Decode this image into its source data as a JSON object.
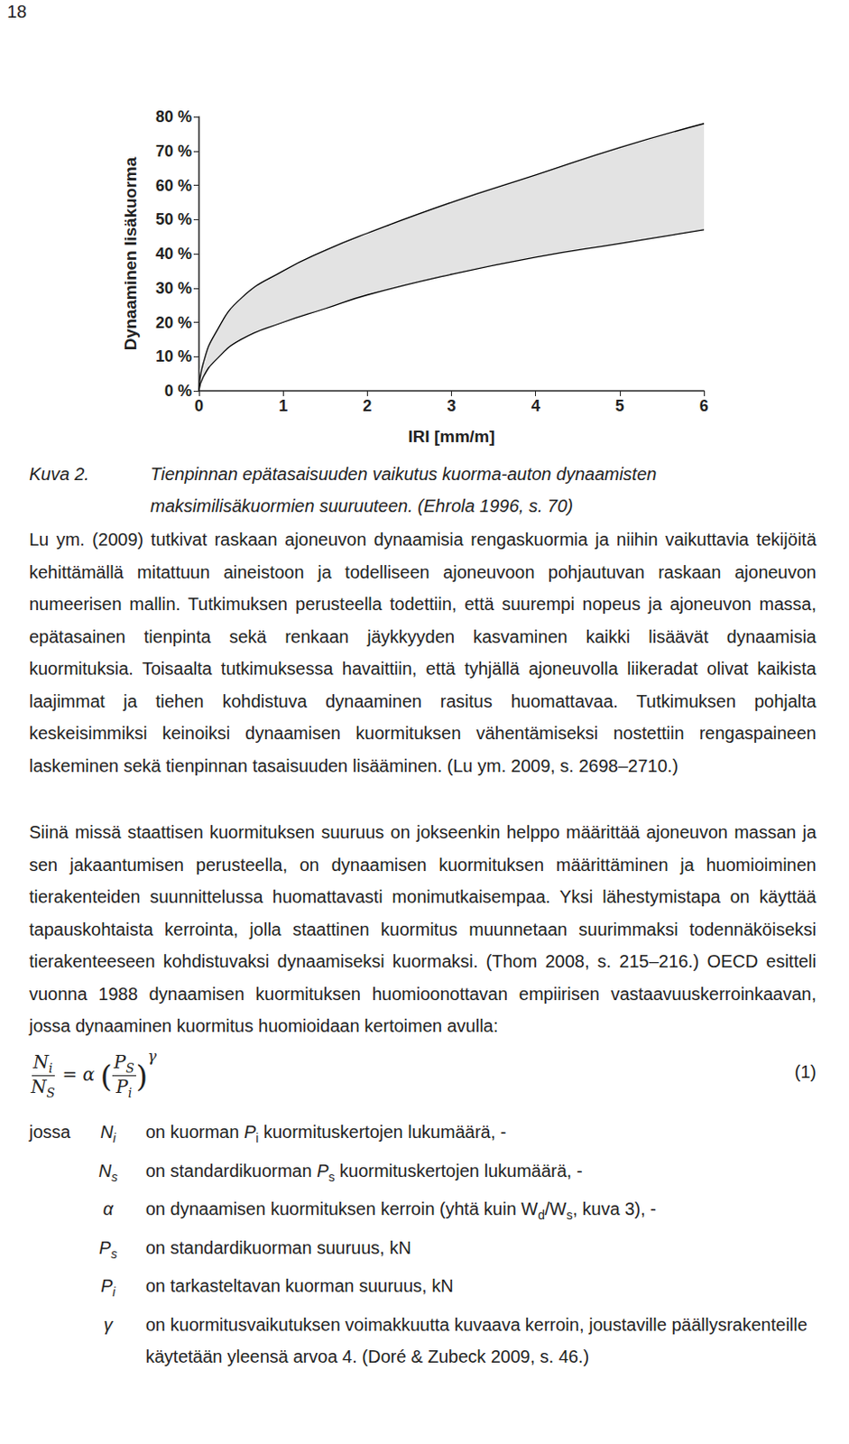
{
  "chart_data": {
    "type": "line",
    "xlabel": "IRI [mm/m]",
    "ylabel": "Dynaaminen lisäkuorma",
    "x": [
      0,
      0.05,
      0.2,
      0.5,
      1,
      1.5,
      2,
      3,
      4,
      5,
      6
    ],
    "series": [
      {
        "color": "#000000",
        "values": [
          0,
          8,
          17,
          27,
          35,
          41,
          46,
          55,
          63,
          71,
          78
        ]
      },
      {
        "color": "#000000",
        "values": [
          0,
          4,
          9,
          15,
          20,
          24,
          28,
          34,
          39,
          43,
          47
        ]
      }
    ],
    "xlim": [
      0,
      6
    ],
    "xticks": [
      0,
      1,
      2,
      3,
      4,
      5,
      6
    ],
    "ylim": [
      0,
      80
    ],
    "yticks": [
      {
        "value": 0,
        "label": "0 %"
      },
      {
        "value": 10,
        "label": "10 %"
      },
      {
        "value": 20,
        "label": "20 %"
      },
      {
        "value": 30,
        "label": "30 %"
      },
      {
        "value": 40,
        "label": "40 %"
      },
      {
        "value": 50,
        "label": "50 %"
      },
      {
        "value": 60,
        "label": "60 %"
      },
      {
        "value": 70,
        "label": "70 %"
      },
      {
        "value": 80,
        "label": "80 %"
      }
    ],
    "grid": false
  },
  "document": {
    "page_number": "18",
    "caption": {
      "label": "Kuva 2.",
      "text": "Tienpinnan epätasaisuuden vaikutus kuorma-auton dynaamisten maksimilisäkuormien suuruuteen. (Ehrola 1996, s. 70)"
    },
    "paragraphs": [
      "Lu ym. (2009) tutkivat raskaan ajoneuvon dynaamisia rengaskuormia ja niihin vaikuttavia tekijöitä kehittämällä mitattuun aineistoon ja todelliseen ajoneuvoon pohjautuvan raskaan ajoneuvon numeerisen mallin. Tutkimuksen perusteella todettiin, että suurempi nopeus ja ajoneuvon massa, epätasainen tienpinta sekä renkaan jäykkyyden kasvaminen kaikki lisäävät dynaamisia kuormituksia. Toisaalta tutkimuksessa havaittiin, että tyhjällä ajoneuvolla liikeradat olivat kaikista laajimmat ja tiehen kohdistuva dynaaminen rasitus huomattavaa. Tutkimuksen pohjalta keskeisimmiksi keinoiksi dynaamisen kuormituksen vähentämiseksi nostettiin rengaspaineen laskeminen sekä tienpinnan tasaisuuden lisääminen. (Lu ym. 2009, s. 2698–2710.)",
      "Siinä missä staattisen kuormituksen suuruus on jokseenkin helppo määrittää ajoneuvon massan ja sen jakaantumisen perusteella, on dynaamisen kuormituksen määrittäminen ja huomioiminen tierakenteiden suunnittelussa huomattavasti monimutkaisempaa. Yksi lähestymistapa on käyttää tapauskohtaista kerrointa, jolla staattinen kuormitus muunnetaan suurimmaksi todennäköiseksi tierakenteeseen kohdistuvaksi dynaamiseksi kuormaksi. (Thom 2008, s. 215–216.) OECD esitteli vuonna 1988 dynaamisen kuormituksen huomioonottavan empiirisen vastaavuuskerroinkaavan, jossa dynaaminen kuormitus huomioidaan kertoimen avulla:"
    ],
    "formula": {
      "lhs_num": {
        "base": "N",
        "sub": "i"
      },
      "lhs_den": {
        "base": "N",
        "sub": "S"
      },
      "equals": "=",
      "coef": "α",
      "open": "(",
      "rhs_num": {
        "base": "P",
        "sub": "S"
      },
      "rhs_den": {
        "base": "P",
        "sub": "i"
      },
      "close": ")",
      "exponent": "γ",
      "number": "(1)"
    },
    "definitions": {
      "lead": "jossa",
      "rows": [
        {
          "symbol": {
            "base": "N",
            "sub": "i"
          },
          "text": [
            "on kuorman ",
            {
              "base": "P",
              "sub": "i"
            },
            " kuormituskertojen lukumäärä, -"
          ]
        },
        {
          "symbol": {
            "base": "N",
            "sub": "s"
          },
          "text": [
            "on standardikuorman ",
            {
              "base": "P",
              "sub": "s"
            },
            " kuormituskertojen lukumäärä, -"
          ]
        },
        {
          "symbol": {
            "base": "α",
            "sub": ""
          },
          "text": [
            "on dynaamisen kuormituksen kerroin (yhtä kuin W",
            {
              "base": "",
              "sub": "d"
            },
            "/W",
            {
              "base": "",
              "sub": "s"
            },
            ", kuva 3), -"
          ]
        },
        {
          "symbol": {
            "base": "P",
            "sub": "s"
          },
          "text": [
            "on standardikuorman suuruus, kN"
          ]
        },
        {
          "symbol": {
            "base": "P",
            "sub": "i"
          },
          "text": [
            "on tarkasteltavan kuorman suuruus, kN"
          ]
        },
        {
          "symbol": {
            "base": "γ",
            "sub": ""
          },
          "text": [
            "on kuormitusvaikutuksen voimakkuutta kuvaava kerroin, joustaville päällysrakenteille käytetään yleensä arvoa 4. (Doré & Zubeck 2009, s. 46.)"
          ]
        }
      ]
    }
  }
}
